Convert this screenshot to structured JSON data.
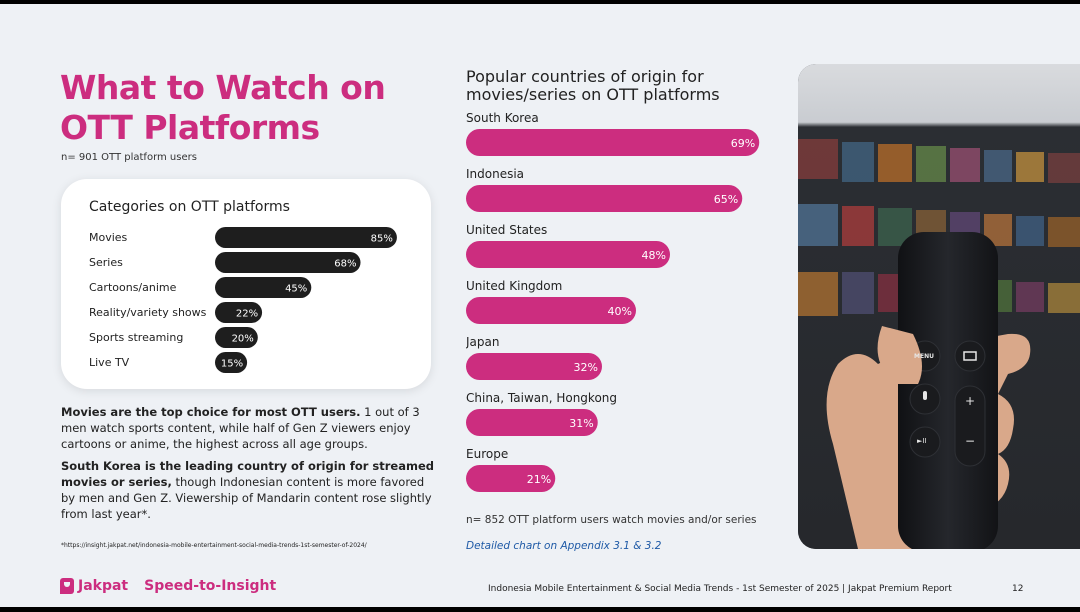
{
  "header": {
    "title_line1": "What to Watch on",
    "title_line2": "OTT Platforms",
    "sample_note": "n= 901 OTT platform users"
  },
  "summary": {
    "p1_bold": "Movies are the top choice for most OTT users.",
    "p1_rest": " 1 out of 3 men watch sports content, while half of Gen Z viewers enjoy cartoons or anime, the highest across all age groups.",
    "p2_bold": "South Korea is the leading country of origin for streamed movies or series,",
    "p2_rest": " though Indonesian content is more favored by men and Gen Z. Viewership of Mandarin content rose slightly from last year*."
  },
  "source_url": "*https://insight.jakpat.net/indonesia-mobile-entertainment-social-media-trends-1st-semester-of-2024/",
  "right": {
    "title": "Popular countries of origin for movies/series on OTT platforms",
    "sample_note": "n= 852 OTT platform users watch movies and/or series",
    "appendix_link": "Detailed chart on Appendix 3.1 & 3.2"
  },
  "footer": {
    "brand": "Jakpat",
    "tagline": "Speed-to-Insight",
    "report": "Indonesia Mobile Entertainment & Social Media Trends - 1st Semester of 2025 | Jakpat Premium Report",
    "page": "12"
  },
  "photo": {
    "remote_menu": "MENU",
    "remote_plus": "+",
    "remote_minus": "−",
    "remote_playpause": "►II"
  },
  "colors": {
    "accent": "#cc2d7f",
    "dark_bar": "#1e1e1e",
    "link": "#1f5aa6"
  },
  "chart_data": [
    {
      "type": "bar",
      "orientation": "horizontal",
      "title": "Categories on OTT platforms",
      "categories": [
        "Movies",
        "Series",
        "Cartoons/anime",
        "Reality/variety shows",
        "Sports streaming",
        "Live TV"
      ],
      "values": [
        85,
        68,
        45,
        22,
        20,
        15
      ],
      "labels": [
        "85%",
        "68%",
        "45%",
        "22%",
        "20%",
        "15%"
      ],
      "unit": "%",
      "xlim": [
        0,
        100
      ]
    },
    {
      "type": "bar",
      "orientation": "horizontal",
      "title": "Popular countries of origin for movies/series on OTT platforms",
      "categories": [
        "South Korea",
        "Indonesia",
        "United States",
        "United Kingdom",
        "Japan",
        "China, Taiwan, Hongkong",
        "Europe"
      ],
      "values": [
        69,
        65,
        48,
        40,
        32,
        31,
        21
      ],
      "labels": [
        "69%",
        "65%",
        "48%",
        "40%",
        "32%",
        "31%",
        "21%"
      ],
      "unit": "%",
      "xlim": [
        0,
        100
      ]
    }
  ]
}
